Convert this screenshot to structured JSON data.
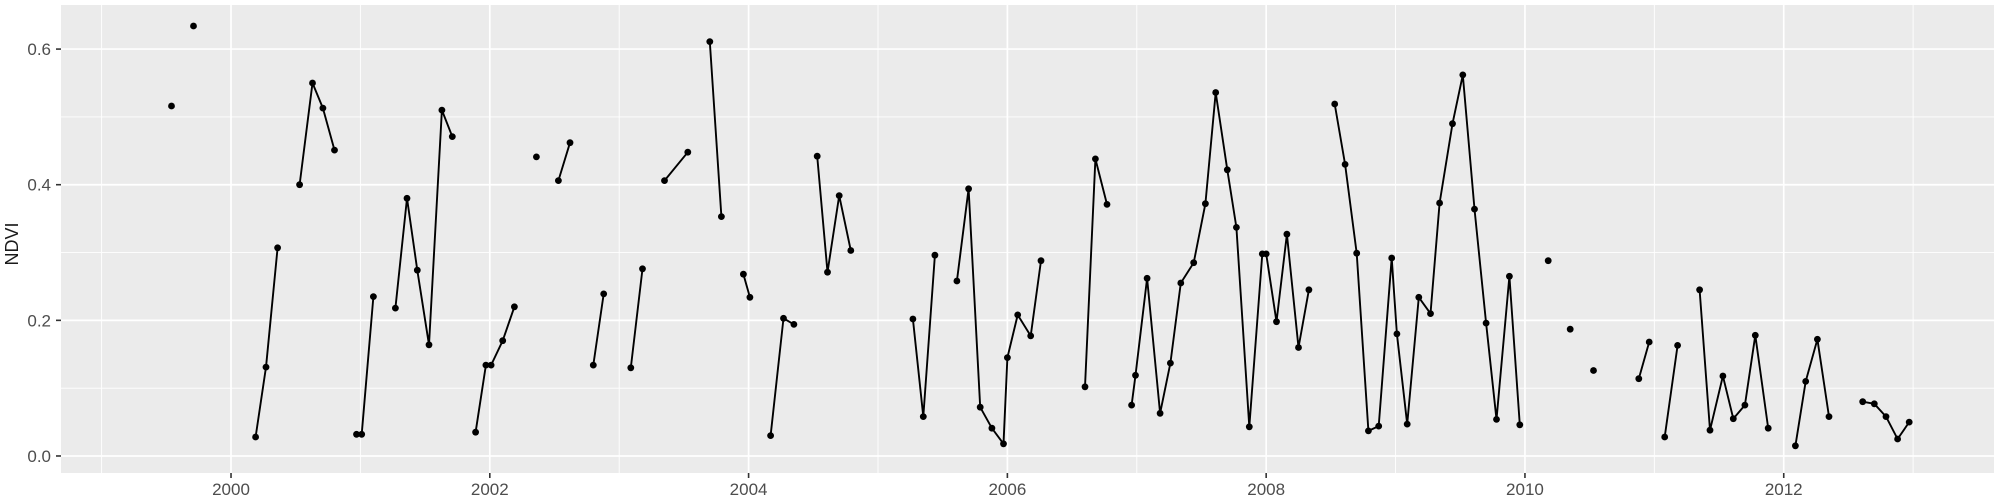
{
  "chart_data": {
    "type": "line",
    "title": "",
    "xlabel": "",
    "ylabel": "NDVI",
    "x_ticks": [
      2000,
      2002,
      2004,
      2006,
      2008,
      2010,
      2012
    ],
    "x_minor_ticks": [
      1999,
      2001,
      2003,
      2005,
      2007,
      2009,
      2011,
      2013
    ],
    "y_ticks": [
      0.0,
      0.2,
      0.4,
      0.6
    ],
    "y_minor_ticks": [
      0.1,
      0.3,
      0.5
    ],
    "xlim": [
      1998.686,
      2013.625
    ],
    "ylim": [
      -0.0251,
      0.665
    ],
    "grid": true,
    "legend": false,
    "colors": {
      "panel_background": "#EBEBEB",
      "grid_major": "#FFFFFF",
      "grid_minor": "#FFFFFF",
      "point": "#000000",
      "line": "#000000",
      "tick_mark": "#333333",
      "tick_label": "#4D4D4D",
      "axis_title": "#1A1A1A"
    },
    "segments": [
      [
        [
          1999.54,
          0.516
        ]
      ],
      [
        [
          1999.71,
          0.634
        ]
      ],
      [
        [
          2000.19,
          0.028
        ],
        [
          2000.27,
          0.131
        ],
        [
          2000.36,
          0.307
        ]
      ],
      [
        [
          2000.53,
          0.4
        ],
        [
          2000.63,
          0.55
        ],
        [
          2000.71,
          0.513
        ],
        [
          2000.8,
          0.451
        ]
      ],
      [
        [
          2000.97,
          0.032
        ],
        [
          2001.01,
          0.032
        ],
        [
          2001.1,
          0.235
        ]
      ],
      [
        [
          2001.27,
          0.218
        ],
        [
          2001.36,
          0.38
        ],
        [
          2001.44,
          0.274
        ],
        [
          2001.53,
          0.164
        ],
        [
          2001.63,
          0.51
        ],
        [
          2001.71,
          0.471
        ]
      ],
      [
        [
          2001.89,
          0.035
        ],
        [
          2001.97,
          0.134
        ],
        [
          2002.01,
          0.134
        ],
        [
          2002.1,
          0.17
        ],
        [
          2002.19,
          0.22
        ]
      ],
      [
        [
          2002.36,
          0.441
        ]
      ],
      [
        [
          2002.53,
          0.406
        ],
        [
          2002.62,
          0.462
        ]
      ],
      [
        [
          2002.8,
          0.134
        ],
        [
          2002.88,
          0.239
        ]
      ],
      [
        [
          2003.09,
          0.13
        ],
        [
          2003.18,
          0.276
        ]
      ],
      [
        [
          2003.35,
          0.406
        ],
        [
          2003.53,
          0.448
        ]
      ],
      [
        [
          2003.7,
          0.611
        ],
        [
          2003.79,
          0.353
        ]
      ],
      [
        [
          2003.96,
          0.268
        ],
        [
          2004.01,
          0.234
        ]
      ],
      [
        [
          2004.17,
          0.03
        ],
        [
          2004.27,
          0.203
        ],
        [
          2004.35,
          0.194
        ]
      ],
      [
        [
          2004.53,
          0.442
        ],
        [
          2004.61,
          0.271
        ],
        [
          2004.7,
          0.384
        ],
        [
          2004.79,
          0.303
        ]
      ],
      [
        [
          2005.27,
          0.202
        ],
        [
          2005.35,
          0.058
        ],
        [
          2005.44,
          0.296
        ]
      ],
      [
        [
          2005.61,
          0.258
        ],
        [
          2005.7,
          0.394
        ],
        [
          2005.79,
          0.072
        ],
        [
          2005.88,
          0.041
        ],
        [
          2005.97,
          0.018
        ],
        [
          2006.0,
          0.145
        ],
        [
          2006.08,
          0.208
        ],
        [
          2006.18,
          0.177
        ],
        [
          2006.26,
          0.288
        ]
      ],
      [
        [
          2006.6,
          0.102
        ],
        [
          2006.68,
          0.438
        ],
        [
          2006.77,
          0.371
        ]
      ],
      [
        [
          2006.96,
          0.075
        ],
        [
          2006.99,
          0.119
        ],
        [
          2007.08,
          0.262
        ],
        [
          2007.18,
          0.063
        ],
        [
          2007.26,
          0.137
        ],
        [
          2007.34,
          0.255
        ],
        [
          2007.44,
          0.285
        ],
        [
          2007.53,
          0.372
        ],
        [
          2007.61,
          0.536
        ],
        [
          2007.7,
          0.422
        ],
        [
          2007.77,
          0.337
        ],
        [
          2007.87,
          0.043
        ],
        [
          2007.97,
          0.298
        ],
        [
          2008.0,
          0.298
        ],
        [
          2008.08,
          0.198
        ],
        [
          2008.16,
          0.327
        ],
        [
          2008.25,
          0.16
        ],
        [
          2008.33,
          0.245
        ]
      ],
      [
        [
          2008.53,
          0.519
        ],
        [
          2008.61,
          0.43
        ],
        [
          2008.7,
          0.299
        ],
        [
          2008.79,
          0.037
        ],
        [
          2008.87,
          0.044
        ],
        [
          2008.97,
          0.292
        ],
        [
          2009.01,
          0.18
        ],
        [
          2009.09,
          0.047
        ],
        [
          2009.18,
          0.234
        ],
        [
          2009.27,
          0.21
        ],
        [
          2009.34,
          0.373
        ],
        [
          2009.44,
          0.49
        ],
        [
          2009.52,
          0.562
        ],
        [
          2009.61,
          0.364
        ],
        [
          2009.7,
          0.196
        ],
        [
          2009.78,
          0.054
        ],
        [
          2009.88,
          0.265
        ],
        [
          2009.96,
          0.046
        ]
      ],
      [
        [
          2010.18,
          0.288
        ]
      ],
      [
        [
          2010.35,
          0.187
        ]
      ],
      [
        [
          2010.53,
          0.126
        ]
      ],
      [
        [
          2010.88,
          0.114
        ],
        [
          2010.96,
          0.168
        ]
      ],
      [
        [
          2011.08,
          0.028
        ],
        [
          2011.18,
          0.163
        ]
      ],
      [
        [
          2011.35,
          0.245
        ],
        [
          2011.43,
          0.038
        ],
        [
          2011.53,
          0.118
        ],
        [
          2011.61,
          0.055
        ],
        [
          2011.7,
          0.075
        ],
        [
          2011.78,
          0.178
        ],
        [
          2011.88,
          0.041
        ]
      ],
      [
        [
          2012.09,
          0.015
        ],
        [
          2012.17,
          0.11
        ],
        [
          2012.26,
          0.172
        ],
        [
          2012.35,
          0.058
        ]
      ],
      [
        [
          2012.61,
          0.08
        ],
        [
          2012.7,
          0.077
        ],
        [
          2012.79,
          0.058
        ],
        [
          2012.88,
          0.025
        ],
        [
          2012.97,
          0.05
        ]
      ]
    ]
  }
}
